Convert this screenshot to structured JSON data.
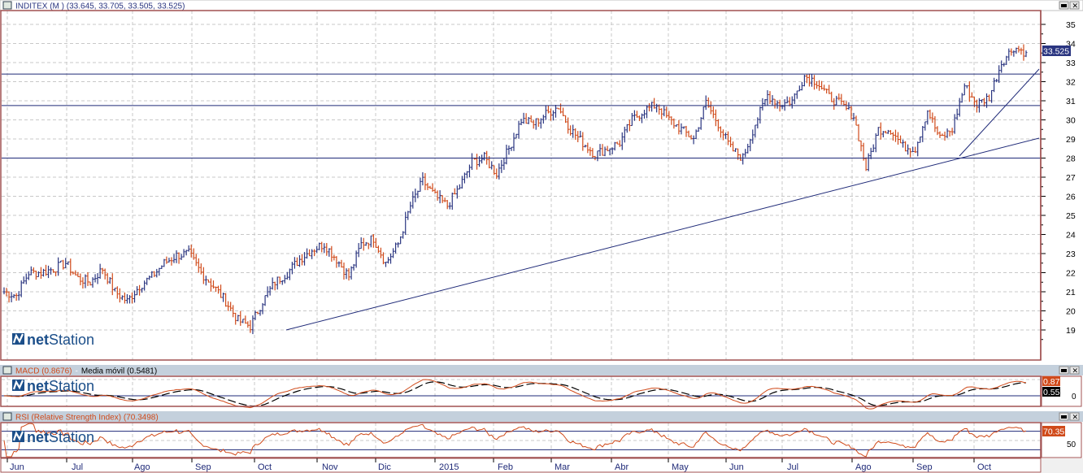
{
  "main": {
    "title": "INDITEX (M ) (33.645, 33.705, 33.505, 33.525)",
    "last_price": "33.525",
    "y_ticks": [
      "19",
      "20",
      "21",
      "22",
      "23",
      "24",
      "25",
      "26",
      "27",
      "28",
      "29",
      "30",
      "31",
      "32",
      "33",
      "34",
      "35"
    ],
    "y_range": [
      18,
      35.8
    ],
    "horizontal_lines": [
      32.4,
      30.75,
      28.0
    ],
    "closes": [
      21,
      20.8,
      22,
      22,
      22.2,
      22.5,
      21.7,
      21.5,
      22.2,
      21,
      20.5,
      21.3,
      21.8,
      22.5,
      22.9,
      23,
      22,
      21.3,
      20.5,
      19.5,
      19.2,
      20.5,
      21.5,
      22,
      22.7,
      23.2,
      23.5,
      22.7,
      21.8,
      23.5,
      23.8,
      22.5,
      23.5,
      25.5,
      26.8,
      26,
      25.5,
      26.5,
      27.8,
      28,
      27.2,
      28.5,
      30,
      29.8,
      30.3,
      30.7,
      29.5,
      28.8,
      28.2,
      28.5,
      28.8,
      30,
      30.5,
      30.8,
      30,
      29.5,
      29,
      30.9,
      29.8,
      28.5,
      28,
      29.8,
      31.3,
      30.8,
      31,
      32.3,
      32,
      31.2,
      30.8,
      30.2,
      27.5,
      29.5,
      29.5,
      28.6,
      28.5,
      30.5,
      29,
      29.5,
      31.8,
      30.8,
      31.2,
      33,
      33.8,
      33.525
    ],
    "up_color": "#2a3580",
    "down_color": "#d04a1a",
    "line_color": "#1f2a78"
  },
  "macd": {
    "title": "MACD (0.8676)",
    "separator": "-",
    "signal_title": "Media móvil (0.5481)",
    "macd_value": "0.87",
    "signal_value": "0.55",
    "zero_label": "0",
    "macd_color": "#d04a1a",
    "signal_color": "#000000"
  },
  "rsi": {
    "title": "RSI (Relative Strength Index) (70.3498)",
    "value": "70.35",
    "mid_label": "50",
    "color": "#d04a1a"
  },
  "x_axis": {
    "months": [
      "Jun",
      "Jul",
      "Ago",
      "Sep",
      "Oct",
      "Nov",
      "Dic",
      "2015",
      "Feb",
      "Mar",
      "Abr",
      "May",
      "Jun",
      "Jul",
      "Ago",
      "Sep",
      "Oct"
    ]
  },
  "logo": "netStation",
  "window_buttons": [
    "maximize-icon",
    "close-icon"
  ]
}
